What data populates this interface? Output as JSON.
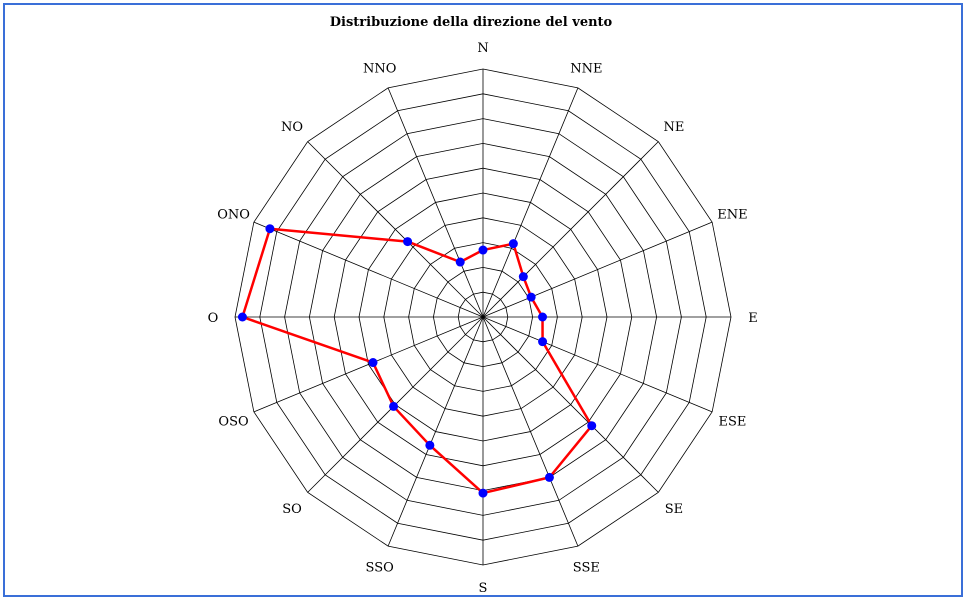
{
  "chart_data": {
    "type": "radar",
    "title": "Distribuzione della direzione del vento",
    "categories": [
      "N",
      "NNE",
      "NE",
      "ENE",
      "E",
      "ESE",
      "SE",
      "SSE",
      "S",
      "SSO",
      "SO",
      "OSO",
      "O",
      "ONO",
      "NO",
      "NNO"
    ],
    "rlim": [
      0,
      10
    ],
    "rings": 10,
    "grid": true,
    "series": [
      {
        "values": [
          2.7,
          3.2,
          2.3,
          2.1,
          2.4,
          2.6,
          6.2,
          7.0,
          7.1,
          5.6,
          5.1,
          4.8,
          9.7,
          9.3,
          4.3,
          2.4
        ]
      }
    ],
    "colors": {
      "line": "#ff0000",
      "point": "#0000ff",
      "grid": "#000000",
      "frame": "#3a6fd8"
    }
  }
}
